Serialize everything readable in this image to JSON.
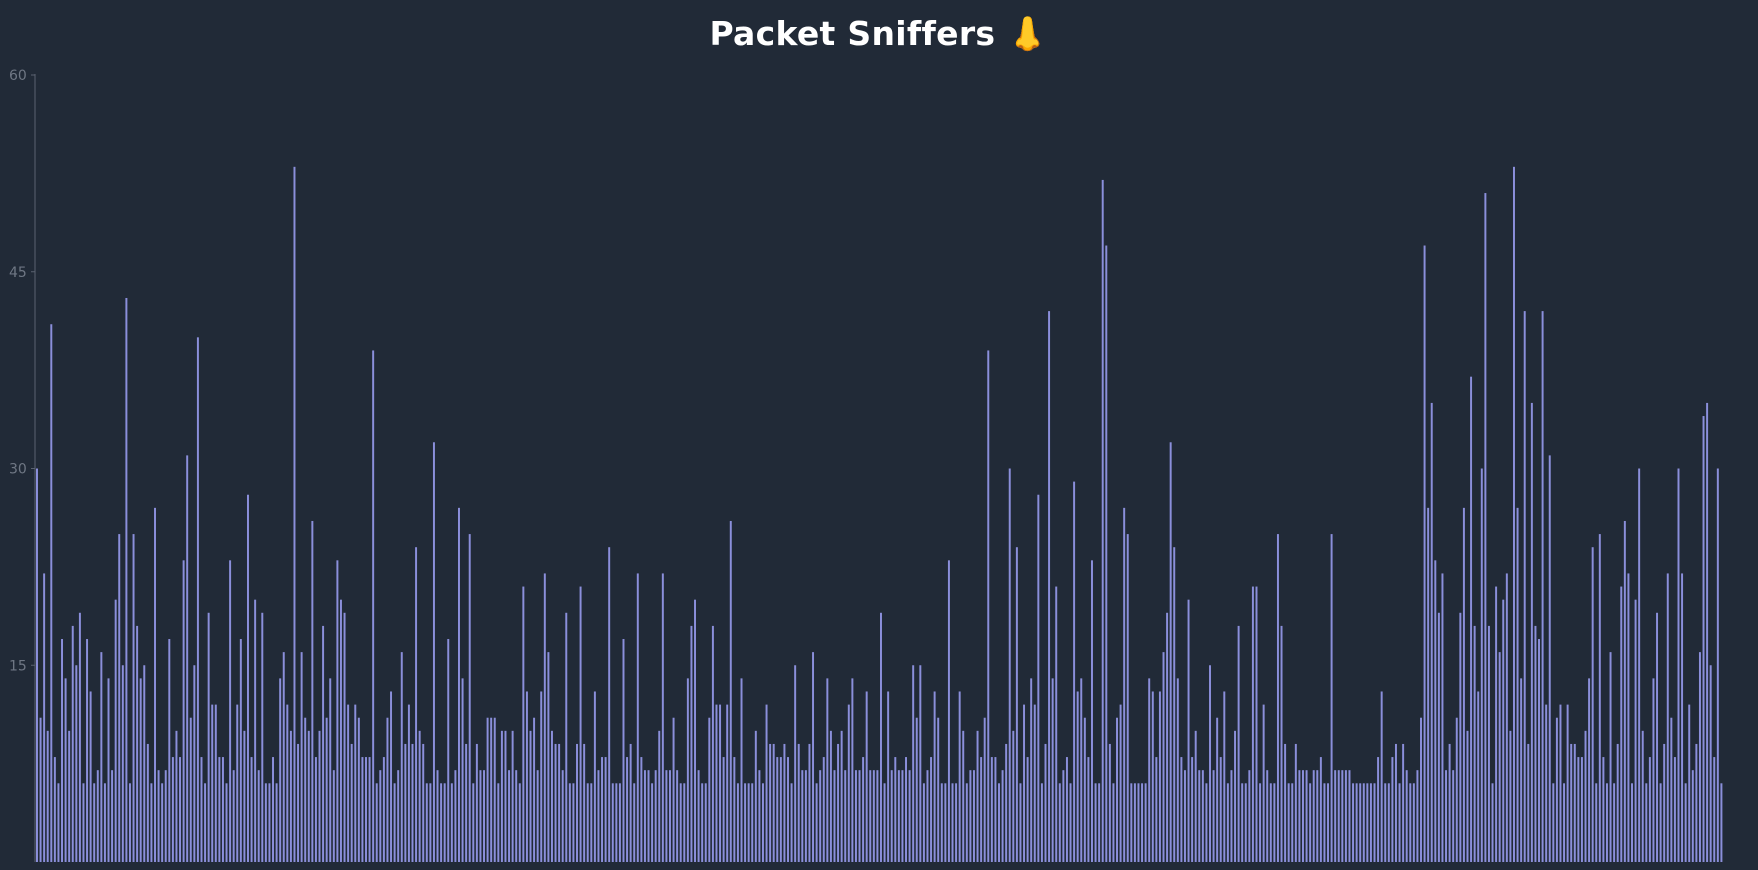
{
  "chart_data": {
    "type": "bar",
    "title": "Packet Sniffers 👃",
    "xlabel": "",
    "ylabel": "",
    "ylim": [
      0,
      60
    ],
    "yticks": [
      60,
      45,
      30,
      15
    ],
    "grid": false,
    "bar_color": "#8b8fdb",
    "background": "#212a37",
    "values": [
      30,
      11,
      22,
      10,
      41,
      8,
      6,
      17,
      14,
      10,
      18,
      15,
      19,
      6,
      17,
      13,
      6,
      7,
      16,
      6,
      14,
      7,
      20,
      25,
      15,
      43,
      6,
      25,
      18,
      14,
      15,
      9,
      6,
      27,
      7,
      6,
      7,
      17,
      8,
      10,
      8,
      23,
      31,
      11,
      15,
      40,
      8,
      6,
      19,
      12,
      12,
      8,
      8,
      6,
      23,
      7,
      12,
      17,
      10,
      28,
      8,
      20,
      7,
      19,
      6,
      6,
      8,
      6,
      14,
      16,
      12,
      10,
      53,
      9,
      16,
      11,
      10,
      26,
      8,
      10,
      18,
      11,
      14,
      7,
      23,
      20,
      19,
      12,
      9,
      12,
      11,
      8,
      8,
      8,
      39,
      6,
      7,
      8,
      11,
      13,
      6,
      7,
      16,
      9,
      12,
      9,
      24,
      10,
      9,
      6,
      6,
      32,
      7,
      6,
      6,
      17,
      6,
      7,
      27,
      14,
      9,
      25,
      6,
      9,
      7,
      7,
      11,
      11,
      11,
      6,
      10,
      10,
      7,
      10,
      7,
      6,
      21,
      13,
      10,
      11,
      7,
      13,
      22,
      16,
      10,
      9,
      9,
      7,
      19,
      6,
      6,
      9,
      21,
      9,
      6,
      6,
      13,
      7,
      8,
      8,
      24,
      6,
      6,
      6,
      17,
      8,
      9,
      6,
      22,
      8,
      7,
      7,
      6,
      7,
      10,
      22,
      7,
      7,
      11,
      7,
      6,
      6,
      14,
      18,
      20,
      7,
      6,
      6,
      11,
      18,
      12,
      12,
      8,
      12,
      26,
      8,
      6,
      14,
      6,
      6,
      6,
      10,
      7,
      6,
      12,
      9,
      9,
      8,
      8,
      9,
      8,
      6,
      15,
      9,
      7,
      7,
      9,
      16,
      6,
      7,
      8,
      14,
      10,
      7,
      9,
      10,
      7,
      12,
      14,
      7,
      7,
      8,
      13,
      7,
      7,
      7,
      19,
      6,
      13,
      7,
      8,
      7,
      7,
      8,
      7,
      15,
      11,
      15,
      6,
      7,
      8,
      13,
      11,
      6,
      6,
      23,
      6,
      6,
      13,
      10,
      6,
      7,
      7,
      10,
      8,
      11,
      39,
      8,
      8,
      6,
      7,
      9,
      30,
      10,
      24,
      6,
      12,
      8,
      14,
      12,
      28,
      6,
      9,
      42,
      14,
      21,
      6,
      7,
      8,
      6,
      29,
      13,
      14,
      11,
      8,
      23,
      6,
      6,
      52,
      47,
      9,
      6,
      11,
      12,
      27,
      25,
      6,
      6,
      6,
      6,
      6,
      14,
      13,
      8,
      13,
      16,
      19,
      32,
      24,
      14,
      8,
      7,
      20,
      8,
      10,
      7,
      7,
      6,
      15,
      7,
      11,
      8,
      13,
      6,
      7,
      10,
      18,
      6,
      6,
      7,
      21,
      21,
      6,
      12,
      7,
      6,
      6,
      25,
      18,
      9,
      6,
      6,
      9,
      7,
      7,
      7,
      6,
      7,
      7,
      8,
      6,
      6,
      25,
      7,
      7,
      7,
      7,
      7,
      6,
      6,
      6,
      6,
      6,
      6,
      6,
      8,
      13,
      6,
      6,
      8,
      9,
      6,
      9,
      7,
      6,
      6,
      7,
      11,
      47,
      27,
      35,
      23,
      19,
      22,
      7,
      9,
      7,
      11,
      19,
      27,
      10,
      37,
      18,
      13,
      30,
      51,
      18,
      6,
      21,
      16,
      20,
      22,
      10,
      53,
      27,
      14,
      42,
      9,
      35,
      18,
      17,
      42,
      12,
      31,
      6,
      11,
      12,
      6,
      12,
      9,
      9,
      8,
      8,
      10,
      14,
      24,
      6,
      25,
      8,
      6,
      16,
      6,
      9,
      21,
      26,
      22,
      6,
      20,
      30,
      10,
      6,
      8,
      14,
      19,
      6,
      9,
      22,
      11,
      8,
      30,
      22,
      6,
      12,
      7,
      9,
      16,
      34,
      35,
      15,
      8,
      30,
      6
    ]
  }
}
